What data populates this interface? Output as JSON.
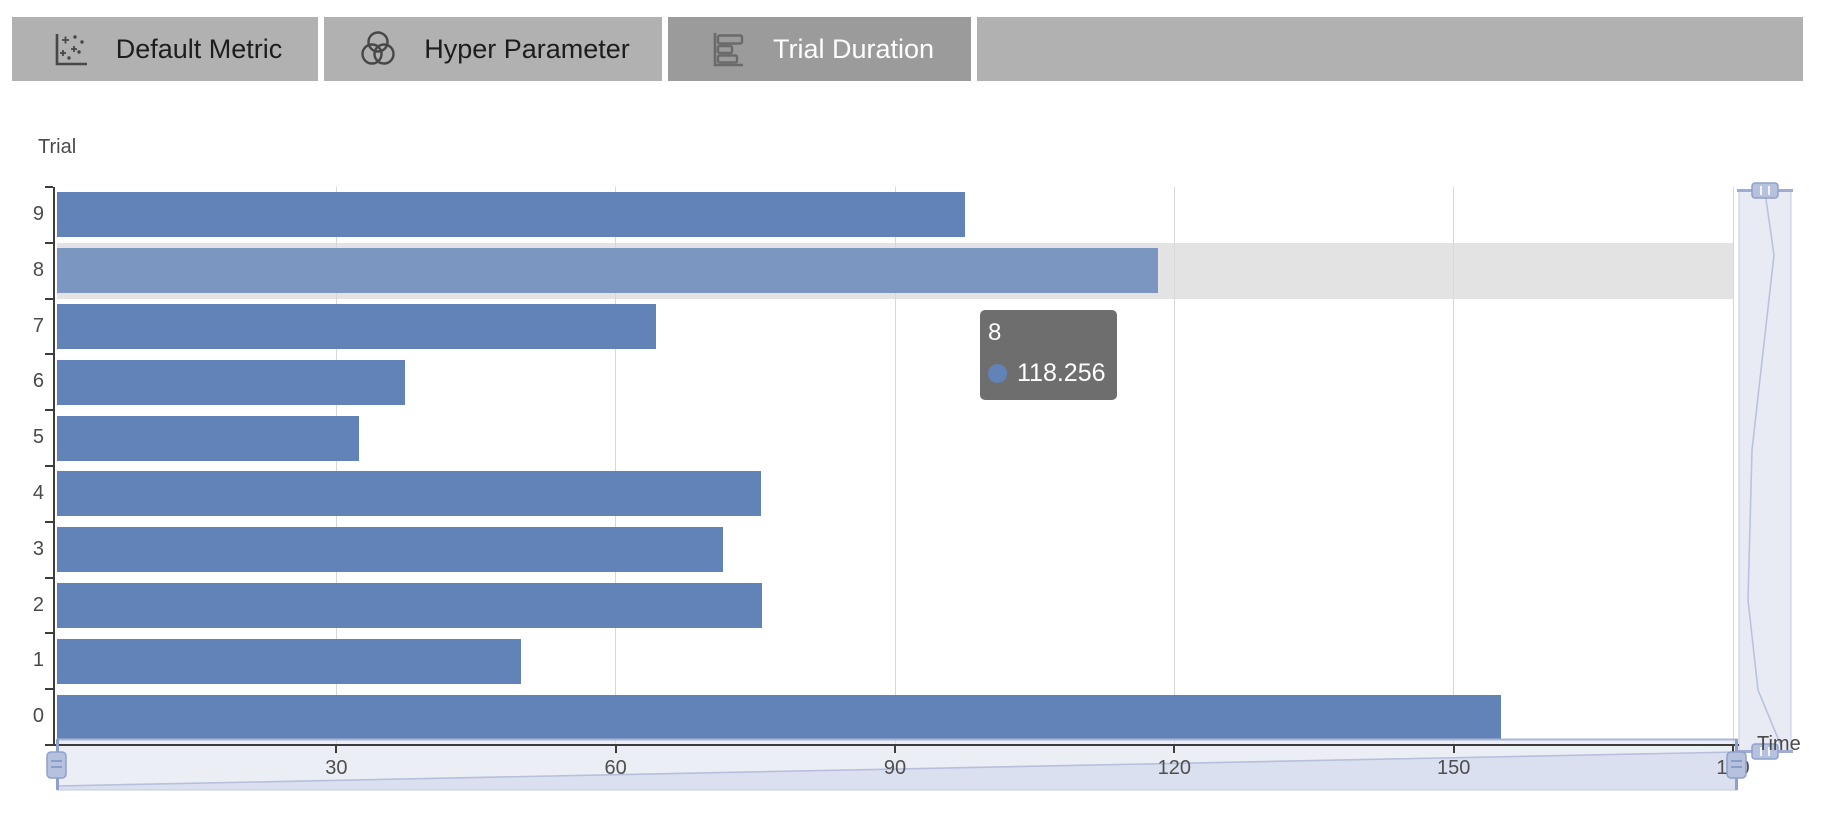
{
  "tab_bar": {
    "tabs": [
      {
        "label": "Default Metric",
        "icon": "scatter-chart-icon",
        "selected": false
      },
      {
        "label": "Hyper Parameter",
        "icon": "venn-circles-icon",
        "selected": false
      },
      {
        "label": "Trial Duration",
        "icon": "horizontal-bar-chart-icon",
        "selected": true
      }
    ]
  },
  "tooltip": {
    "title": "8",
    "value": "118.256"
  },
  "chart_data": {
    "type": "bar",
    "orientation": "horizontal",
    "title": "",
    "ylabel": "Trial",
    "xlabel": "Time",
    "categories": [
      "9",
      "8",
      "7",
      "6",
      "5",
      "4",
      "3",
      "2",
      "1",
      "0"
    ],
    "values": [
      97.5,
      118.256,
      64.3,
      37.4,
      32.4,
      75.6,
      71.5,
      75.7,
      49.8,
      155.1
    ],
    "highlighted_category": "8",
    "x_ticks": [
      0,
      30,
      60,
      90,
      120,
      150,
      180
    ],
    "xlim": [
      0,
      180
    ],
    "grid": true,
    "legend": false,
    "datazoom_sliders": [
      "bottom",
      "right"
    ]
  },
  "colors": {
    "bar": "#6183b7",
    "bar_highlight": "#7b96c0",
    "hover_band": "#e3e3e3",
    "gridline": "#d8d8d8",
    "axis": "#3d3d3d",
    "label": "#4a4a4a",
    "tooltip_bg": "#686868",
    "tooltip_text": "#ffffff",
    "slider_fill": "#dfe3f0",
    "slider_border": "#b3bdd9",
    "slider_handle": "#b6c1de",
    "slider_handle_stroke": "#8fa0cc",
    "tab_bg": "#b1b1b1",
    "tab_selected_bg": "#9b9b9b",
    "tab_text": "#1d1d1d",
    "tab_selected_text": "#fdfdfd"
  }
}
